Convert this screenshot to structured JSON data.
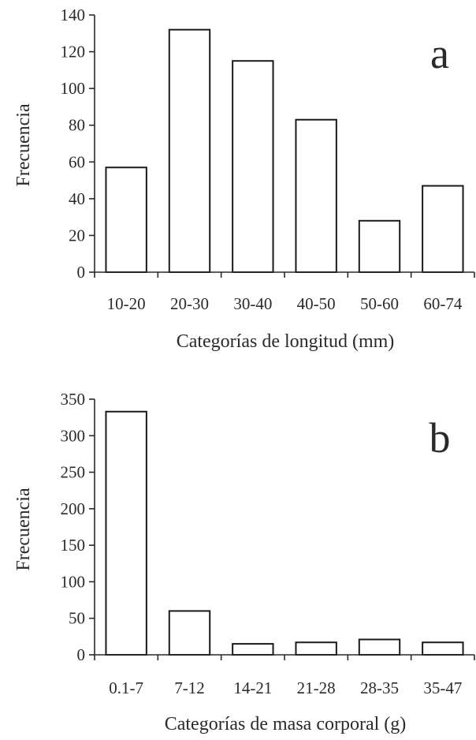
{
  "chart_data": [
    {
      "type": "bar",
      "panel_label": "a",
      "categories": [
        "10-20",
        "20-30",
        "30-40",
        "40-50",
        "50-60",
        "60-74"
      ],
      "values": [
        57,
        132,
        115,
        83,
        28,
        47
      ],
      "xlabel": "Categorías de longitud (mm)",
      "ylabel": "Frecuencia",
      "ylim": [
        0,
        140
      ],
      "yticks": [
        0,
        20,
        40,
        60,
        80,
        100,
        120,
        140
      ],
      "grid": false
    },
    {
      "type": "bar",
      "panel_label": "b",
      "categories": [
        "0.1-7",
        "7-12",
        "14-21",
        "21-28",
        "28-35",
        "35-47"
      ],
      "values": [
        333,
        60,
        15,
        17,
        21,
        17
      ],
      "xlabel": "Categorías de masa corporal (g)",
      "ylabel": "Frecuencia",
      "ylim": [
        0,
        350
      ],
      "yticks": [
        0,
        50,
        100,
        150,
        200,
        250,
        300,
        350
      ],
      "grid": false
    }
  ]
}
